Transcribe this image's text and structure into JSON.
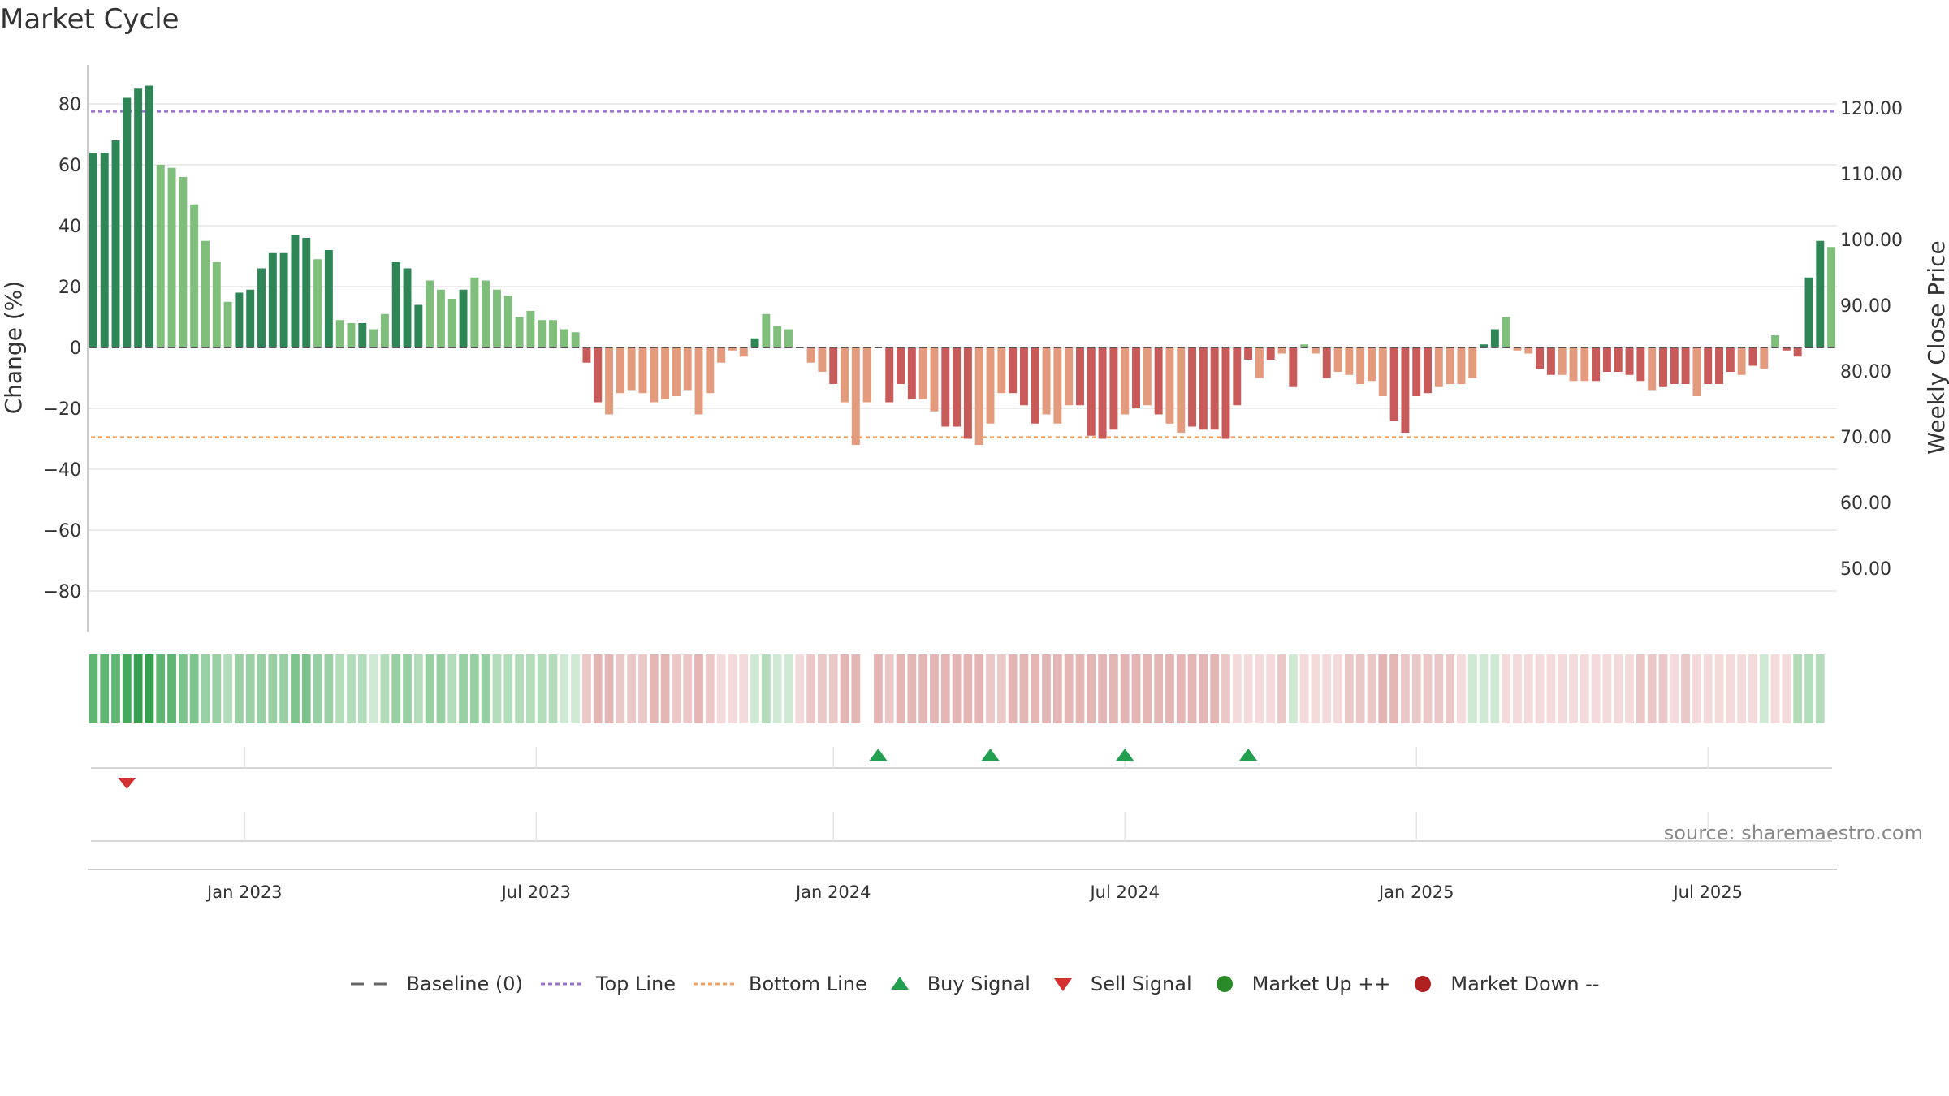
{
  "chart_data": {
    "type": "bar",
    "title": "Market Cycle",
    "ylabel_left": "Change (%)",
    "ylabel_right": "Weekly Close Price",
    "ylim": [
      -92,
      92
    ],
    "yticks": [
      80,
      60,
      40,
      20,
      0,
      -20,
      -40,
      -60,
      -80
    ],
    "ytick_labels": [
      "80",
      "60",
      "40",
      "20",
      "0",
      "−20",
      "−40",
      "−60",
      "−80"
    ],
    "right_ticks": [
      "120.00",
      "110.00",
      "100.00",
      "90.00",
      "80.00",
      "70.00",
      "60.00",
      "50.00"
    ],
    "top_line": 77.5,
    "bottom_line": -29.5,
    "x_ticks": [
      "Jan 2023",
      "Jul 2023",
      "Jan 2024",
      "Jul 2024",
      "Jan 2025",
      "Jul 2025"
    ],
    "x_tick_index": [
      14,
      40,
      66.5,
      92.5,
      118.5,
      144.5
    ],
    "series": [
      {
        "name": "Change (%)",
        "values": [
          64,
          64,
          68,
          82,
          85,
          86,
          60,
          59,
          56,
          47,
          35,
          28,
          15,
          18,
          19,
          26,
          31,
          31,
          37,
          36,
          29,
          32,
          9,
          8,
          8,
          6,
          11,
          28,
          26,
          14,
          22,
          19,
          16,
          19,
          23,
          22,
          19,
          17,
          10,
          12,
          9,
          9,
          6,
          5,
          -5,
          -18,
          -22,
          -15,
          -14,
          -15,
          -18,
          -17,
          -16,
          -14,
          -22,
          -15,
          -5,
          -1,
          -3,
          3,
          11,
          7,
          6,
          0,
          -5,
          -8,
          -12,
          -18,
          -32,
          -18,
          0,
          -18,
          -12,
          -17,
          -17,
          -21,
          -26,
          -26,
          -30,
          -32,
          -25,
          -15,
          -15,
          -19,
          -25,
          -22,
          -25,
          -19,
          -19,
          -29,
          -30,
          -27,
          -22,
          -20,
          -19,
          -22,
          -25,
          -28,
          -26,
          -27,
          -27,
          -30,
          -19,
          -4,
          -10,
          -4,
          -2,
          -13,
          1,
          -2,
          -10,
          -8,
          -9,
          -12,
          -11,
          -16,
          -24,
          -28,
          -16,
          -15,
          -13,
          -12,
          -12,
          -10,
          1,
          6,
          10,
          -1,
          -2,
          -7,
          -9,
          -9,
          -11,
          -11,
          -11,
          -8,
          -8,
          -9,
          -11,
          -14,
          -13,
          -12,
          -12,
          -16,
          -12,
          -12,
          -8,
          -9,
          -6,
          -7,
          4,
          -1,
          -3,
          23,
          35,
          33
        ]
      }
    ],
    "dark_flags": "111111000000011111110100100111000100000000001100000000000001000100100001110011100011100011110101001111110101001000001111000011000110001111101110111010011110",
    "heat_levels": [
      5,
      5,
      5,
      6,
      7,
      7,
      5,
      5,
      4,
      4,
      3,
      3,
      2,
      3,
      3,
      3,
      3,
      3,
      4,
      4,
      3,
      3,
      2,
      2,
      2,
      1,
      2,
      3,
      3,
      2,
      3,
      3,
      2,
      3,
      3,
      3,
      2,
      2,
      2,
      2,
      2,
      2,
      1,
      1,
      -2,
      -3,
      -3,
      -2,
      -2,
      -2,
      -3,
      -3,
      -2,
      -2,
      -3,
      -2,
      -1,
      -1,
      -1,
      1,
      2,
      1,
      1,
      -1,
      -2,
      -2,
      -2,
      -3,
      -3,
      0,
      -3,
      -2,
      -3,
      -3,
      -3,
      -3,
      -3,
      -3,
      -3,
      -3,
      -2,
      -2,
      -3,
      -3,
      -3,
      -3,
      -3,
      -3,
      -3,
      -3,
      -3,
      -3,
      -3,
      -3,
      -3,
      -3,
      -3,
      -3,
      -3,
      -3,
      -3,
      -2,
      -1,
      -1,
      -1,
      -1,
      -2,
      1,
      -1,
      -1,
      -1,
      -1,
      -2,
      -2,
      -2,
      -3,
      -3,
      -2,
      -2,
      -2,
      -2,
      -2,
      -1,
      1,
      1,
      1,
      -1,
      -1,
      -1,
      -1,
      -1,
      -1,
      -1,
      -1,
      -1,
      -1,
      -1,
      -1,
      -2,
      -2,
      -2,
      -1,
      -2,
      -1,
      -1,
      -1,
      -1,
      -1,
      -1,
      1,
      -1,
      -1,
      2,
      2,
      2
    ],
    "buy_signals": [
      70,
      80,
      92,
      103
    ],
    "sell_signals": [
      3
    ],
    "colors": {
      "up_dark": "#2e8657",
      "up_light": "#7fbe7b",
      "down_dark": "#c85a5a",
      "down_light": "#e49b7d",
      "top_line": "#9b6fd0",
      "bottom_line": "#f0a060",
      "buy": "#22a050",
      "sell": "#d43030",
      "market_up": "#2a8a2a",
      "market_down": "#b02020"
    }
  },
  "source_note": "source: sharemaestro.com",
  "legend": {
    "baseline": "Baseline (0)",
    "top_line": "Top Line",
    "bottom_line": "Bottom Line",
    "buy": "Buy Signal",
    "sell": "Sell Signal",
    "market_up": "Market Up ++",
    "market_down": "Market Down --"
  }
}
